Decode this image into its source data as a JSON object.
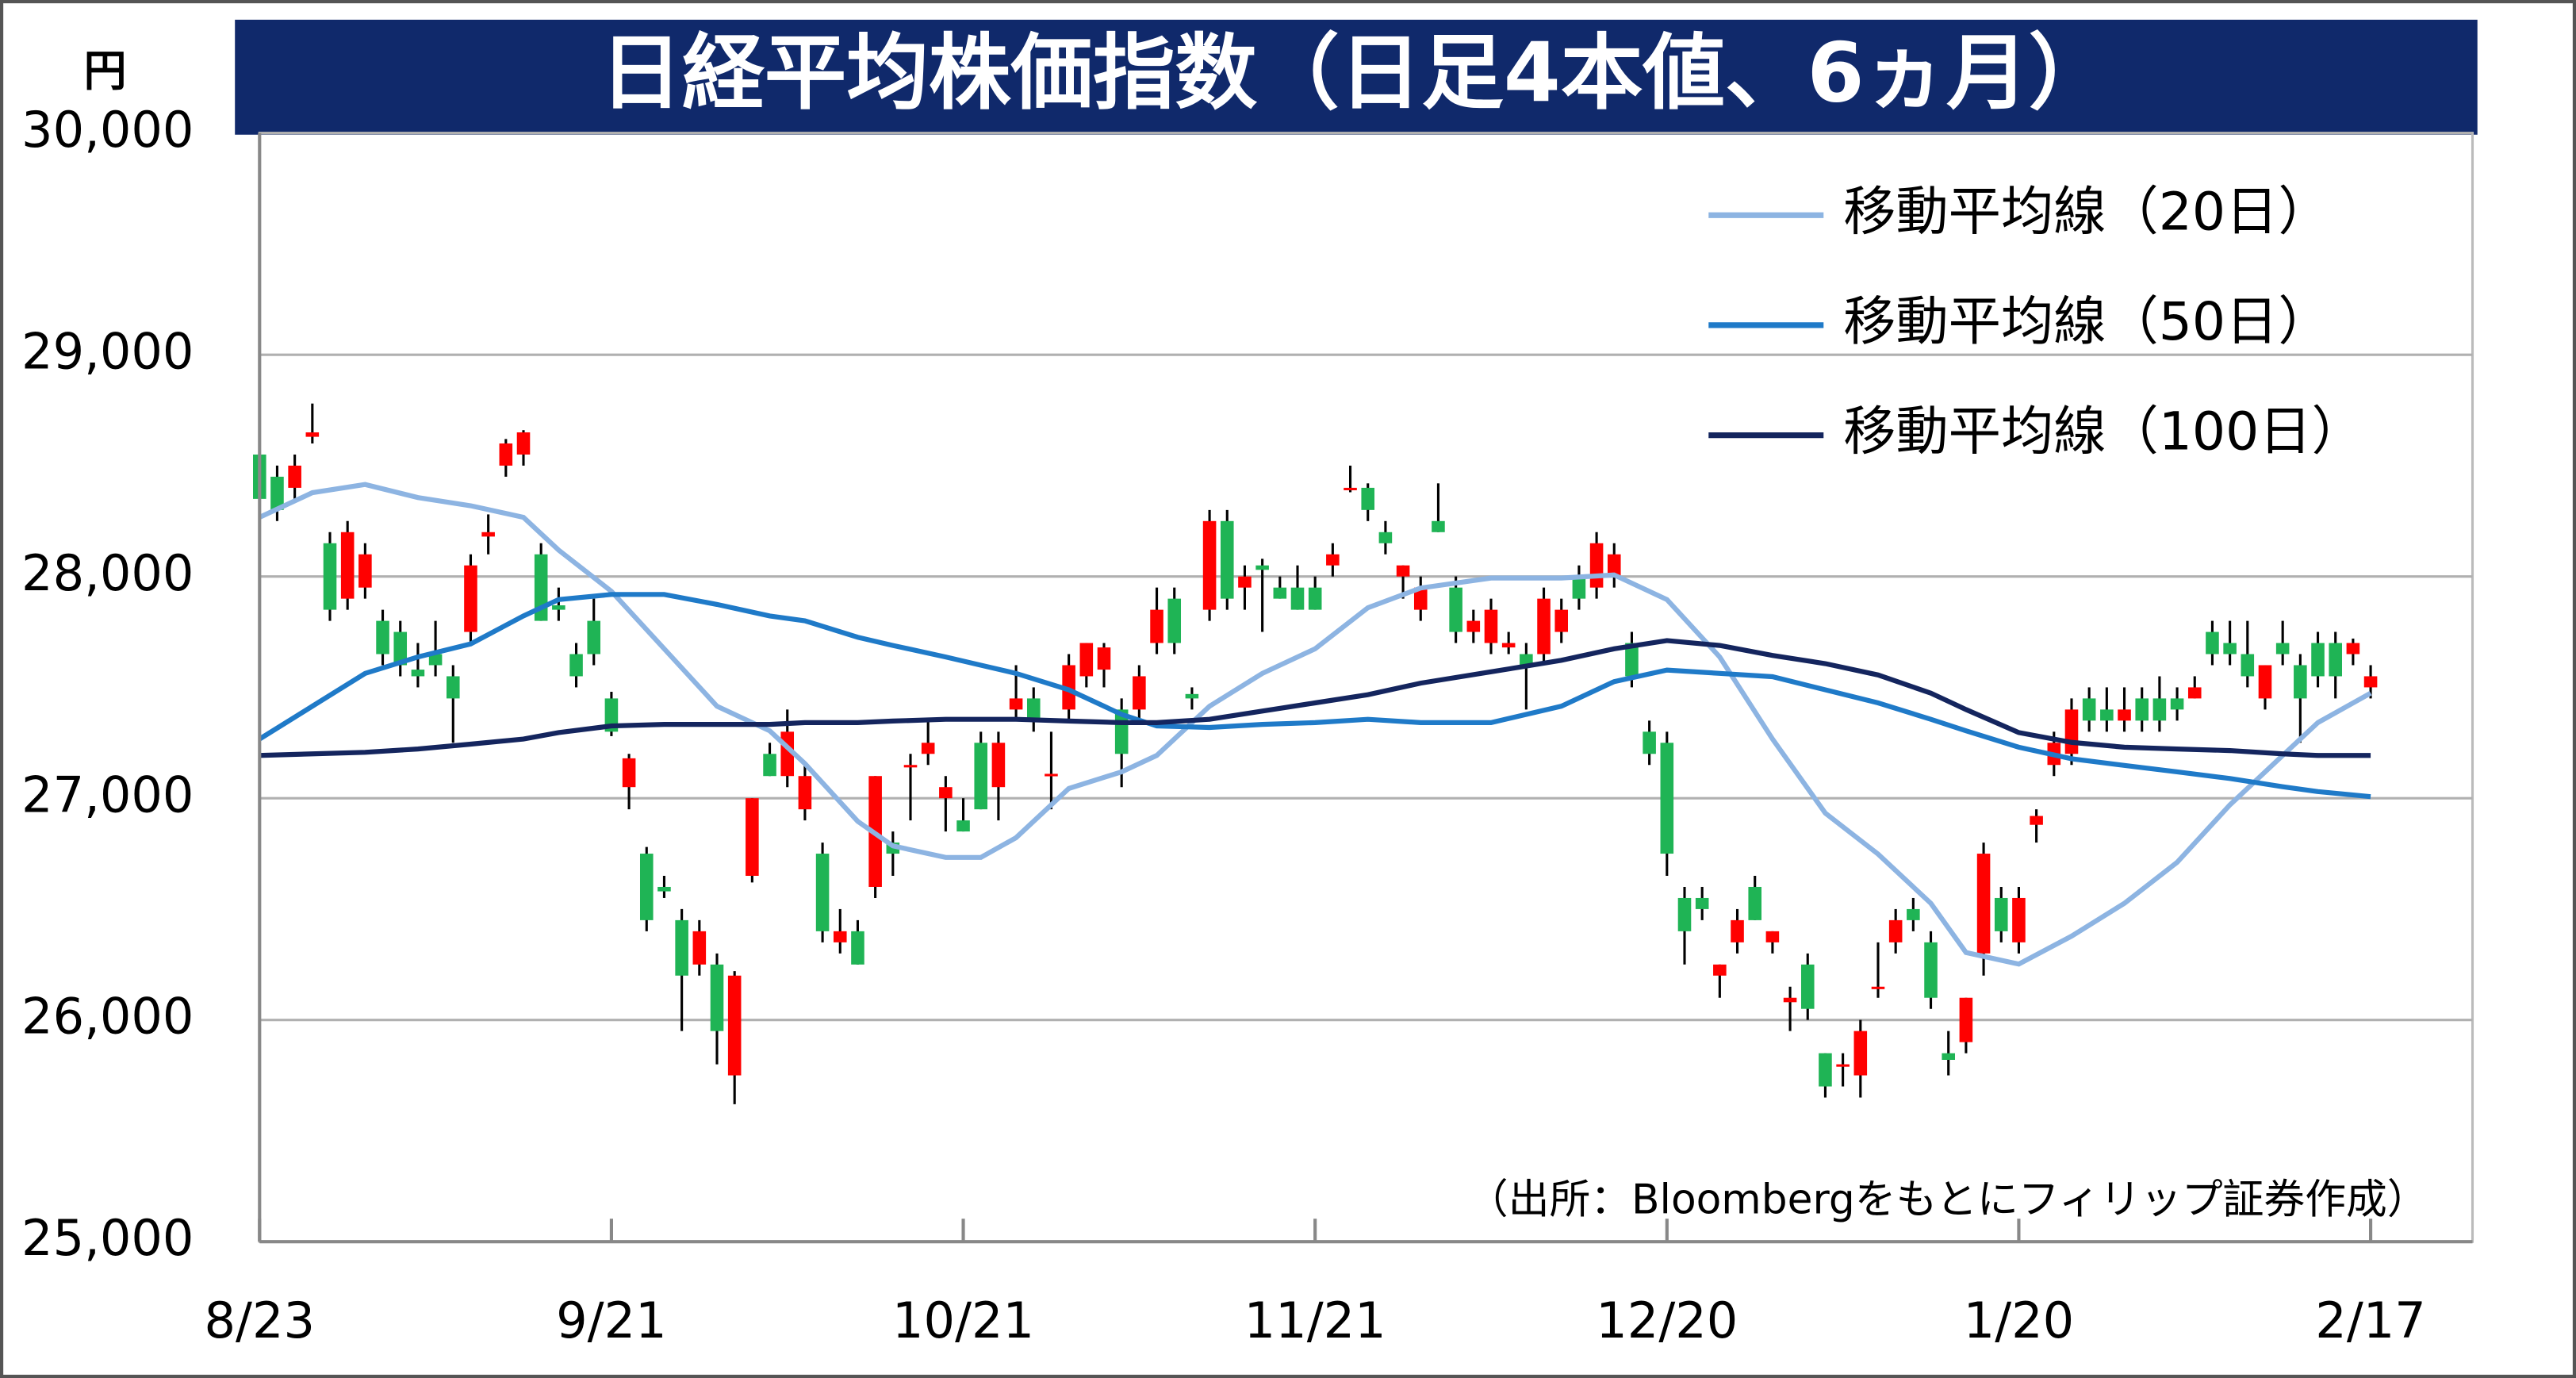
{
  "chart_data": {
    "type": "candlestick",
    "title": "日経平均株価指数（日足4本値、6ヵ月）",
    "y_unit": "円",
    "source": "（出所：Bloombergをもとにフィリップ証券作成）",
    "up_color": "#ff0000",
    "down_color": "#1fb455",
    "ylim": [
      25000,
      30000
    ],
    "yticks": [
      {
        "value": 25000,
        "label": "25,000"
      },
      {
        "value": 26000,
        "label": "26,000"
      },
      {
        "value": 27000,
        "label": "27,000"
      },
      {
        "value": 28000,
        "label": "28,000"
      },
      {
        "value": 29000,
        "label": "29,000"
      },
      {
        "value": 30000,
        "label": "30,000"
      }
    ],
    "grid": true,
    "categories": [
      "8/23",
      null,
      null,
      null,
      null,
      null,
      null,
      null,
      null,
      null,
      null,
      null,
      null,
      null,
      null,
      null,
      null,
      null,
      null,
      null,
      "9/21",
      null,
      null,
      null,
      null,
      null,
      null,
      null,
      null,
      null,
      null,
      null,
      null,
      null,
      null,
      null,
      null,
      null,
      null,
      null,
      "10/21",
      null,
      null,
      null,
      null,
      null,
      null,
      null,
      null,
      null,
      null,
      null,
      null,
      null,
      null,
      null,
      null,
      null,
      null,
      null,
      "11/21",
      null,
      null,
      null,
      null,
      null,
      null,
      null,
      null,
      null,
      null,
      null,
      null,
      null,
      null,
      null,
      null,
      null,
      null,
      null,
      "12/20",
      null,
      null,
      null,
      null,
      null,
      null,
      null,
      null,
      null,
      null,
      null,
      null,
      null,
      null,
      null,
      null,
      null,
      null,
      null,
      "1/20",
      null,
      null,
      null,
      null,
      null,
      null,
      null,
      null,
      null,
      null,
      null,
      null,
      null,
      null,
      null,
      null,
      null,
      null,
      null,
      "2/17"
    ],
    "open": [
      28550,
      28450,
      28400,
      28630,
      28150,
      27900,
      27950,
      27800,
      27750,
      27580,
      27650,
      27550,
      27750,
      28180,
      28500,
      28550,
      28100,
      27870,
      27650,
      27800,
      27450,
      27050,
      26750,
      26600,
      26450,
      26250,
      26250,
      25750,
      26650,
      27200,
      27100,
      26950,
      26750,
      26350,
      26400,
      26600,
      26800,
      27150,
      27200,
      27000,
      26900,
      27250,
      27050,
      27400,
      27450,
      27100,
      27400,
      27550,
      27580,
      27400,
      27400,
      27700,
      27900,
      27470,
      27850,
      28250,
      27950,
      28050,
      27950,
      27950,
      27950,
      28050,
      28390,
      28400,
      28200,
      28000,
      27850,
      28250,
      27950,
      27750,
      27700,
      27680,
      27650,
      27650,
      27750,
      28000,
      27950,
      28000,
      27700,
      27300,
      27250,
      26550,
      26550,
      26200,
      26350,
      26600,
      26350,
      26080,
      26250,
      25850,
      25800,
      25750,
      26150,
      26350,
      26500,
      26350,
      25850,
      25900,
      26300,
      26550,
      26350,
      26880,
      27150,
      27200,
      27450,
      27400,
      27350,
      27450,
      27450,
      27450,
      27450,
      27750,
      27700,
      27650,
      27450,
      27700,
      27600,
      27700,
      27700,
      27650,
      27500
    ],
    "high": [
      28600,
      28500,
      28550,
      28780,
      28200,
      28250,
      28150,
      27850,
      27800,
      27700,
      27800,
      27600,
      28100,
      28280,
      28620,
      28660,
      28150,
      27950,
      27700,
      27900,
      27480,
      27200,
      26780,
      26650,
      26500,
      26450,
      26300,
      26220,
      27000,
      27250,
      27400,
      27150,
      26800,
      26500,
      26450,
      27100,
      26850,
      27200,
      27350,
      27100,
      27000,
      27300,
      27300,
      27600,
      27500,
      27300,
      27650,
      27700,
      27700,
      27450,
      27600,
      27950,
      27950,
      27500,
      28300,
      28300,
      28050,
      28080,
      28000,
      28050,
      28000,
      28150,
      28500,
      28420,
      28250,
      28050,
      28000,
      28420,
      28000,
      27850,
      27900,
      27750,
      27700,
      27950,
      27900,
      28050,
      28200,
      28150,
      27750,
      27350,
      27300,
      26600,
      26600,
      26250,
      26500,
      26650,
      26400,
      26150,
      26300,
      25850,
      25850,
      26000,
      26350,
      26500,
      26550,
      26400,
      25950,
      26100,
      26800,
      26600,
      26600,
      26950,
      27300,
      27450,
      27500,
      27500,
      27500,
      27500,
      27550,
      27500,
      27550,
      27800,
      27800,
      27800,
      27600,
      27800,
      27650,
      27750,
      27750,
      27720,
      27600
    ],
    "low": [
      28300,
      28250,
      28350,
      28600,
      27800,
      27850,
      27900,
      27600,
      27550,
      27500,
      27550,
      27250,
      27700,
      28100,
      28450,
      28500,
      27800,
      27800,
      27500,
      27600,
      27280,
      26950,
      26400,
      26550,
      25950,
      26200,
      25800,
      25620,
      26620,
      27100,
      27050,
      26900,
      26350,
      26300,
      26250,
      26550,
      26650,
      26900,
      27150,
      26850,
      26850,
      26950,
      26900,
      27350,
      27300,
      26950,
      27350,
      27500,
      27500,
      27050,
      27350,
      27650,
      27650,
      27400,
      27800,
      27850,
      27850,
      27750,
      27900,
      27850,
      27850,
      28000,
      28380,
      28250,
      28100,
      27900,
      27800,
      28200,
      27700,
      27700,
      27650,
      27650,
      27400,
      27600,
      27700,
      27850,
      27900,
      27950,
      27500,
      27150,
      26650,
      26250,
      26450,
      26100,
      26300,
      26450,
      26300,
      25950,
      26000,
      25650,
      25700,
      25650,
      26100,
      26300,
      26400,
      26050,
      25750,
      25850,
      26200,
      26350,
      26300,
      26800,
      27100,
      27150,
      27300,
      27300,
      27300,
      27300,
      27300,
      27350,
      27450,
      27600,
      27600,
      27500,
      27400,
      27600,
      27250,
      27500,
      27450,
      27600,
      27450
    ],
    "close": [
      28350,
      28300,
      28500,
      28650,
      27850,
      28200,
      28100,
      27650,
      27600,
      27550,
      27600,
      27450,
      28050,
      28200,
      28600,
      28650,
      27800,
      27850,
      27550,
      27650,
      27300,
      27180,
      26450,
      26580,
      26200,
      26400,
      25950,
      26200,
      27000,
      27100,
      27300,
      27100,
      26400,
      26400,
      26250,
      27100,
      26750,
      27150,
      27250,
      27050,
      26850,
      26950,
      27250,
      27450,
      27350,
      27110,
      27600,
      27700,
      27680,
      27200,
      27550,
      27850,
      27700,
      27450,
      28250,
      27900,
      28000,
      28030,
      27900,
      27850,
      27850,
      28100,
      28400,
      28300,
      28150,
      28050,
      27950,
      28200,
      27750,
      27800,
      27850,
      27700,
      27600,
      27900,
      27850,
      27900,
      28150,
      28100,
      27550,
      27200,
      26750,
      26400,
      26500,
      26250,
      26450,
      26450,
      26400,
      26100,
      26050,
      25700,
      25800,
      25950,
      26150,
      26450,
      26450,
      26100,
      25820,
      26100,
      26750,
      26400,
      26550,
      26920,
      27250,
      27400,
      27350,
      27350,
      27400,
      27350,
      27350,
      27400,
      27500,
      27650,
      27650,
      27550,
      27600,
      27650,
      27450,
      27550,
      27550,
      27700,
      27550
    ],
    "series": [
      {
        "name": "移動平均線（20日）",
        "color": "#8db4e2",
        "x": [
          0,
          3,
          6,
          9,
          12,
          15,
          17,
          20,
          23,
          26,
          29,
          31,
          34,
          36,
          39,
          41,
          43,
          46,
          49,
          51,
          54,
          57,
          60,
          63,
          66,
          70,
          74,
          77,
          80,
          83,
          86,
          89,
          92,
          95,
          97,
          100,
          103,
          106,
          109,
          112,
          115,
          117,
          120
        ],
        "values": [
          28267,
          28378,
          28415,
          28356,
          28319,
          28267,
          28119,
          27933,
          27674,
          27415,
          27304,
          27156,
          26896,
          26785,
          26733,
          26733,
          26822,
          27044,
          27119,
          27193,
          27415,
          27563,
          27674,
          27859,
          27948,
          27993,
          27993,
          28007,
          27896,
          27637,
          27267,
          26933,
          26748,
          26526,
          26304,
          26252,
          26378,
          26526,
          26711,
          26970,
          27193,
          27341,
          27474
        ]
      },
      {
        "name": "移動平均線（50日）",
        "color": "#1f7ac8",
        "x": [
          0,
          3,
          6,
          9,
          12,
          15,
          17,
          20,
          23,
          26,
          29,
          31,
          34,
          36,
          39,
          41,
          43,
          46,
          49,
          51,
          54,
          57,
          60,
          63,
          66,
          70,
          74,
          77,
          80,
          83,
          86,
          89,
          92,
          95,
          97,
          100,
          103,
          106,
          109,
          112,
          115,
          117,
          120
        ],
        "values": [
          27267,
          27415,
          27563,
          27637,
          27696,
          27822,
          27896,
          27919,
          27919,
          27874,
          27822,
          27800,
          27726,
          27689,
          27637,
          27600,
          27563,
          27489,
          27378,
          27326,
          27319,
          27333,
          27341,
          27356,
          27341,
          27341,
          27415,
          27526,
          27578,
          27563,
          27548,
          27489,
          27430,
          27356,
          27304,
          27230,
          27178,
          27148,
          27119,
          27089,
          27052,
          27030,
          27007
        ]
      },
      {
        "name": "移動平均線（100日）",
        "color": "#14255e",
        "x": [
          0,
          3,
          6,
          9,
          12,
          15,
          17,
          20,
          23,
          26,
          29,
          31,
          34,
          36,
          39,
          41,
          43,
          46,
          49,
          51,
          54,
          57,
          60,
          63,
          66,
          70,
          74,
          77,
          80,
          83,
          86,
          89,
          92,
          95,
          97,
          100,
          103,
          106,
          109,
          112,
          115,
          117,
          120
        ],
        "values": [
          27193,
          27200,
          27207,
          27222,
          27244,
          27267,
          27296,
          27326,
          27333,
          27333,
          27333,
          27341,
          27341,
          27348,
          27356,
          27356,
          27356,
          27348,
          27341,
          27341,
          27356,
          27393,
          27430,
          27467,
          27519,
          27570,
          27622,
          27674,
          27711,
          27689,
          27644,
          27607,
          27556,
          27474,
          27400,
          27296,
          27252,
          27230,
          27222,
          27215,
          27200,
          27193,
          27193
        ]
      }
    ]
  }
}
